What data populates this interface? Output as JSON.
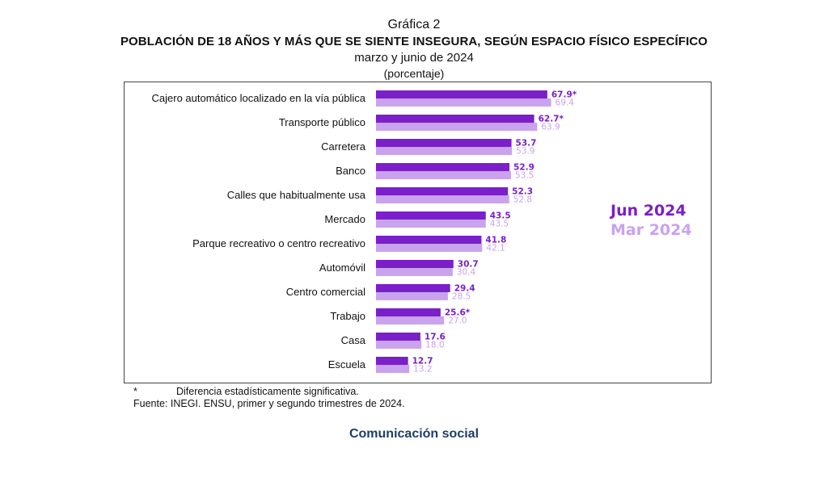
{
  "colors": {
    "jun": "#7a1fc9",
    "mar": "#c9a3ee",
    "footer": "#1e3d66"
  },
  "header": {
    "graf_label": "Gráfica 2",
    "title": "POBLACIÓN DE 18 AÑOS Y MÁS QUE SE SIENTE INSEGURA, SEGÚN ESPACIO FÍSICO ESPECÍFICO",
    "subtitle": "marzo y junio de 2024",
    "unit": "(porcentaje)"
  },
  "chart_data": {
    "type": "bar",
    "orientation": "horizontal",
    "categories": [
      "Cajero automático localizado en la vía pública",
      "Transporte público",
      "Carretera",
      "Banco",
      "Calles que habitualmente usa",
      "Mercado",
      "Parque recreativo o centro recreativo",
      "Automóvil",
      "Centro comercial",
      "Trabajo",
      "Casa",
      "Escuela"
    ],
    "series": [
      {
        "name": "Jun 2024",
        "values": [
          67.9,
          62.7,
          53.7,
          52.9,
          52.3,
          43.5,
          41.8,
          30.7,
          29.4,
          25.6,
          17.6,
          12.7
        ],
        "labels": [
          "67.9*",
          "62.7*",
          "53.7",
          "52.9",
          "52.3",
          "43.5",
          "41.8",
          "30.7",
          "29.4",
          "25.6*",
          "17.6",
          "12.7"
        ]
      },
      {
        "name": "Mar 2024",
        "values": [
          69.4,
          63.9,
          53.9,
          53.5,
          52.8,
          43.5,
          42.1,
          30.4,
          28.5,
          27.0,
          18.0,
          13.2
        ],
        "labels": [
          "69.4",
          "63.9",
          "53.9",
          "53.5",
          "52.8",
          "43.5",
          "42.1",
          "30.4",
          "28.5",
          "27.0",
          "18.0",
          "13.2"
        ]
      }
    ],
    "legend_position": "right",
    "grid": false
  },
  "notes": {
    "star": "*",
    "significance": "Diferencia estadísticamente significativa.",
    "source": "Fuente: INEGI. ENSU, primer y segundo trimestres de 2024."
  },
  "footer": "Comunicación social"
}
